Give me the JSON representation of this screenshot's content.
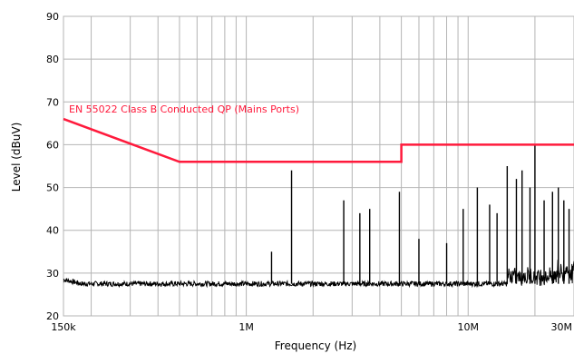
{
  "chart_data": {
    "type": "line",
    "title": "",
    "xlabel": "Frequency (Hz)",
    "ylabel": "Level (dBuV)",
    "x_scale": "log",
    "xlim": [
      150000,
      30000000
    ],
    "ylim": [
      20,
      90
    ],
    "grid": true,
    "x_tick_labels": [
      {
        "value": 150000,
        "label": "150k"
      },
      {
        "value": 1000000,
        "label": "1M"
      },
      {
        "value": 10000000,
        "label": "10M"
      },
      {
        "value": 30000000,
        "label": "30M"
      }
    ],
    "y_ticks": [
      20,
      30,
      40,
      50,
      60,
      70,
      80,
      90
    ],
    "colors": {
      "limit": "#ff1a3c",
      "measurement": "#000000",
      "grid": "#b4b4b4"
    },
    "series": [
      {
        "name": "EN 55022 Class B Conducted QP (Mains Ports)",
        "x": [
          150000,
          500000,
          500000,
          5000000,
          5000000,
          30000000
        ],
        "y": [
          66,
          56,
          56,
          56,
          60,
          60
        ]
      },
      {
        "name": "",
        "noise_floor": 27.5,
        "peaks": [
          {
            "x": 1300000,
            "y": 35
          },
          {
            "x": 1600000,
            "y": 54
          },
          {
            "x": 2750000,
            "y": 47
          },
          {
            "x": 3250000,
            "y": 44
          },
          {
            "x": 3600000,
            "y": 45
          },
          {
            "x": 4900000,
            "y": 49
          },
          {
            "x": 6000000,
            "y": 38
          },
          {
            "x": 8000000,
            "y": 37
          },
          {
            "x": 9500000,
            "y": 45
          },
          {
            "x": 11000000,
            "y": 50
          },
          {
            "x": 12500000,
            "y": 46
          },
          {
            "x": 13500000,
            "y": 44
          },
          {
            "x": 15000000,
            "y": 55
          },
          {
            "x": 16500000,
            "y": 52
          },
          {
            "x": 17500000,
            "y": 54
          },
          {
            "x": 19000000,
            "y": 50
          },
          {
            "x": 20000000,
            "y": 60
          },
          {
            "x": 22000000,
            "y": 47
          },
          {
            "x": 24000000,
            "y": 49
          },
          {
            "x": 25500000,
            "y": 50
          },
          {
            "x": 27000000,
            "y": 47
          },
          {
            "x": 28500000,
            "y": 45
          }
        ]
      }
    ]
  }
}
